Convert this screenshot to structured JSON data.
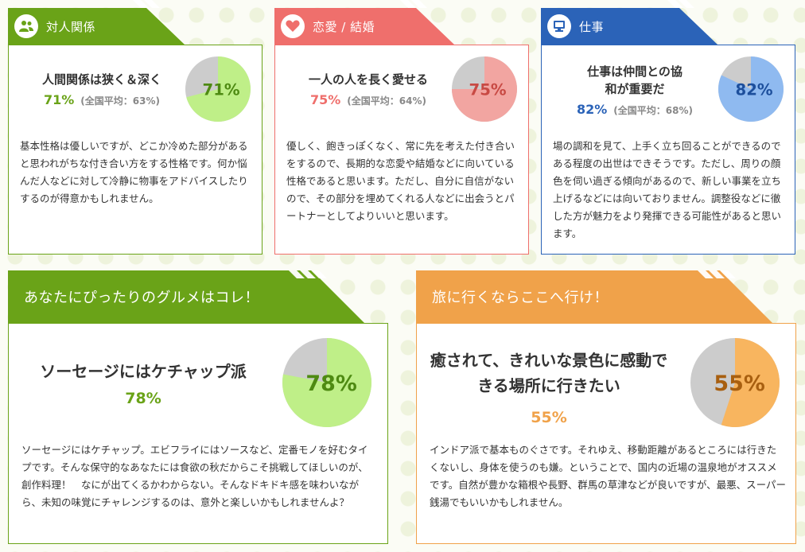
{
  "cards": [
    {
      "title": "対人関係",
      "icon": "people-icon",
      "color": "#6aa318",
      "headline": "人間関係は狭く＆深く",
      "percent": "71%",
      "value": 71,
      "average": "(全国平均：63%)",
      "pie_fill": "#bfef88",
      "pie_text": "#4e8a12",
      "pct_color": "#6aa318",
      "description": "基本性格は優しいですが、どこか冷めた部分があると思われがちな付き合い方をする性格です。何か悩んだ人などに対して冷静に物事をアドバイスしたりするのが得意かもしれません。"
    },
    {
      "title": "恋愛 / 結婚",
      "icon": "heart-icon",
      "color": "#ef6f6c",
      "headline": "一人の人を長く愛せる",
      "percent": "75%",
      "value": 75,
      "average": "(全国平均：64%)",
      "pie_fill": "#f2a5a1",
      "pie_text": "#c84a44",
      "pct_color": "#ef6f6c",
      "description": "優しく、飽きっぽくなく、常に先を考えた付き合いをするので、長期的な恋愛や結婚などに向いている性格であると思います。ただし、自分に自信がないので、その部分を埋めてくれる人などに出会うとパートナーとしてよりいいと思います。"
    },
    {
      "title": "仕事",
      "icon": "monitor-icon",
      "color": "#2b63b8",
      "headline": "仕事は仲間との協和が重要だ",
      "percent": "82%",
      "value": 82,
      "average": "(全国平均：68%)",
      "pie_fill": "#8fbaf0",
      "pie_text": "#1d4f9c",
      "pct_color": "#2b63b8",
      "description": "場の調和を見て、上手く立ち回ることができるのである程度の出世はできそうです。ただし、周りの顔色を伺い過ぎる傾向があるので、新しい事業を立ち上げるなどには向いておりません。調整役などに徹した方が魅力をより発揮できる可能性があると思います。"
    }
  ],
  "gourmet": {
    "title": "あなたにぴったりのグルメはコレ！",
    "color": "#6aa318",
    "headline": "ソーセージにはケチャップ派",
    "percent": "78%",
    "value": 78,
    "pie_fill": "#bfef88",
    "pie_text": "#4e8a12",
    "pct_color": "#6aa318",
    "description": "ソーセージにはケチャップ。エビフライにはソースなど、定番モノを好むタイプです。そんな保守的なあなたには食欲の秋だからこそ挑戦してほしいのが、創作料理！　なにが出てくるかわからない。そんなドキドキ感を味わいながら、未知の味覚にチャレンジするのは、意外と楽しいかもしれませんよ？"
  },
  "travel": {
    "title": "旅に行くならここへ行け！",
    "color": "#f0a24a",
    "headline": "癒されて、きれいな景色に感動できる場所に行きたい",
    "percent": "55%",
    "value": 55,
    "pie_fill": "#f8b55f",
    "pie_text": "#a85f10",
    "pct_color": "#f0a24a",
    "description": "インドア派で基本ものぐさです。それゆえ、移動距離があるところには行きたくないし、身体を使うのも嫌。ということで、国内の近場の温泉地がオススメです。自然が豊かな箱根や長野、群馬の草津などが良いですが、最悪、スーパー銭湯でもいいかもしれません。"
  }
}
